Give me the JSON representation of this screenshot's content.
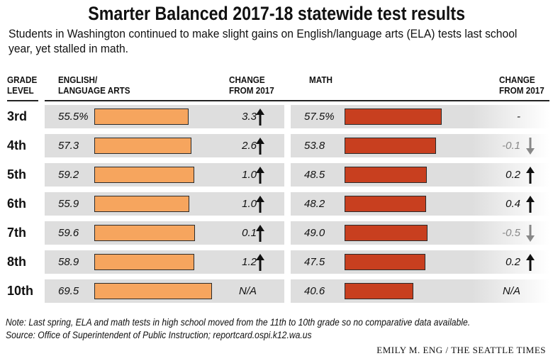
{
  "title": "Smarter Balanced 2017-18 statewide test results",
  "subtitle": "Students in Washington continued to make slight gains on English/language arts (ELA) tests last school year, yet stalled in math.",
  "headers": {
    "grade_line1": "GRADE",
    "grade_line2": "LEVEL",
    "ela_line1": "ENGLISH/",
    "ela_line2": "LANGUAGE ARTS",
    "ela_change_line1": "CHANGE",
    "ela_change_line2": "FROM 2017",
    "math_line1": "MATH",
    "math_change_line1": "CHANGE",
    "math_change_line2": "FROM 2017"
  },
  "colors": {
    "ela_bar": "#f6a55e",
    "math_bar": "#c83f1f",
    "up_arrow": "#111111",
    "down_arrow": "#888888"
  },
  "chart_data": {
    "type": "bar",
    "orientation": "horizontal",
    "categories": [
      "3rd",
      "4th",
      "5th",
      "6th",
      "7th",
      "8th",
      "10th"
    ],
    "series": [
      {
        "name": "ENGLISH/ LANGUAGE ARTS",
        "values": [
          55.5,
          57.3,
          59.2,
          55.9,
          59.6,
          58.9,
          69.5
        ],
        "labels": [
          "55.5%",
          "57.3",
          "59.2",
          "55.9",
          "59.6",
          "58.9",
          "69.5"
        ],
        "change_from_2017": [
          "3.3",
          "2.6",
          "1.0",
          "1.0",
          "0.1",
          "1.2",
          "N/A"
        ],
        "change_direction": [
          "up",
          "up",
          "up",
          "up",
          "up",
          "up",
          "none"
        ]
      },
      {
        "name": "MATH",
        "values": [
          57.5,
          53.8,
          48.5,
          48.2,
          49.0,
          47.5,
          40.6
        ],
        "labels": [
          "57.5%",
          "53.8",
          "48.5",
          "48.2",
          "49.0",
          "47.5",
          "40.6"
        ],
        "change_from_2017": [
          "-",
          "-0.1",
          "0.2",
          "0.4",
          "-0.5",
          "0.2",
          "N/A"
        ],
        "change_direction": [
          "none",
          "down",
          "up",
          "up",
          "down",
          "up",
          "none"
        ]
      }
    ],
    "unit": "percent"
  },
  "note": "Note: Last spring, ELA and math tests in high school moved from the 11th to 10th grade so no comparative data available.",
  "source": "Source: Office of Superintendent of Public Instruction; reportcard.ospi.k12.wa.us",
  "credit": "EMILY M. ENG / THE SEATTLE TIMES"
}
